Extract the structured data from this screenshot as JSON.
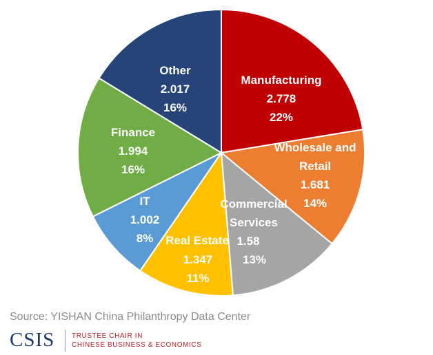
{
  "chart_data": {
    "type": "pie",
    "title": "",
    "slices": [
      {
        "label": "Manufacturing",
        "value": 2.778,
        "value_label": "2.778",
        "percent_label": "22%",
        "color": "#c00000"
      },
      {
        "label": "Wholesale and Retail",
        "value": 1.681,
        "value_label": "1.681",
        "percent_label": "14%",
        "color": "#ed7d31"
      },
      {
        "label": "Commercial Services",
        "value": 1.58,
        "value_label": "1.58",
        "percent_label": "13%",
        "color": "#a5a5a5"
      },
      {
        "label": "Real Estate",
        "value": 1.347,
        "value_label": "1.347",
        "percent_label": "11%",
        "color": "#ffc000"
      },
      {
        "label": "IT",
        "value": 1.002,
        "value_label": "1.002",
        "percent_label": "8%",
        "color": "#5b9bd5"
      },
      {
        "label": "Finance",
        "value": 1.994,
        "value_label": "1.994",
        "percent_label": "16%",
        "color": "#70ad47"
      },
      {
        "label": "Other",
        "value": 2.017,
        "value_label": "2.017",
        "percent_label": "16%",
        "color": "#264478"
      }
    ],
    "start_angle": "12 o'clock",
    "direction": "clockwise",
    "legend": "none"
  },
  "footer": {
    "source": "Source: YISHAN China Philanthropy Data Center",
    "logo_text": "CSIS",
    "logo_subtitle_line1": "TRUSTEE CHAIR IN",
    "logo_subtitle_line2": "CHINESE BUSINESS & ECONOMICS",
    "logo_color": "#1b3a6b",
    "subtitle_color": "#b4202a"
  }
}
